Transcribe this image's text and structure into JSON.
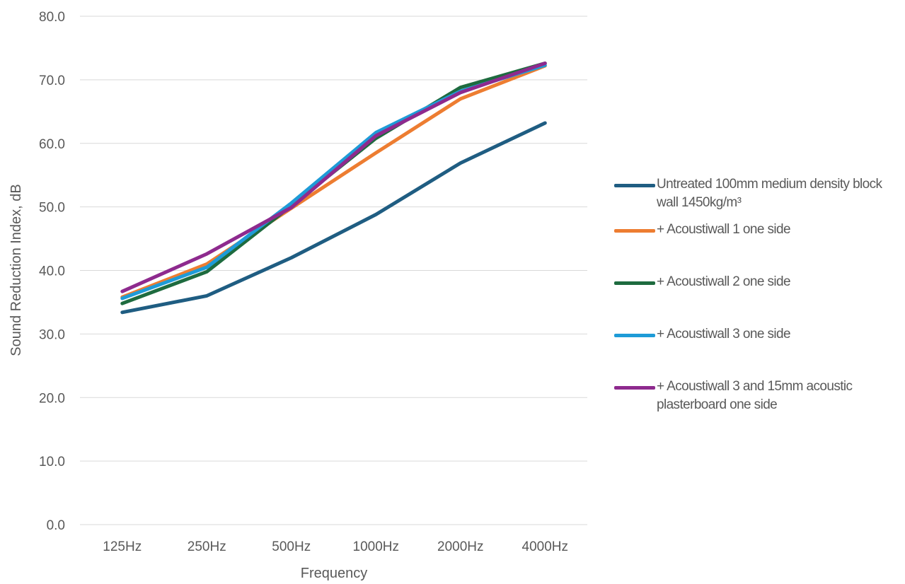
{
  "chart_data": {
    "type": "line",
    "categories": [
      "125Hz",
      "250Hz",
      "500Hz",
      "1000Hz",
      "2000Hz",
      "4000Hz"
    ],
    "xlabel": "Frequency",
    "ylabel": "Sound Reduction Index, dB",
    "ylim": [
      0,
      80
    ],
    "yticks": [
      "0.0",
      "10.0",
      "20.0",
      "30.0",
      "40.0",
      "50.0",
      "60.0",
      "70.0",
      "80.0"
    ],
    "grid": "horizontal",
    "legend_position": "right",
    "series": [
      {
        "name": "Untreated 100mm medium density block wall 1450kg/m³",
        "color": "#1f5d82",
        "values": [
          33.4,
          36.0,
          42.0,
          48.8,
          56.9,
          63.2
        ]
      },
      {
        "name": "+ Acoustiwall 1 one side",
        "color": "#ed7d31",
        "values": [
          35.8,
          41.0,
          49.8,
          58.5,
          67.0,
          72.2
        ]
      },
      {
        "name": "+ Acoustiwall 2 one side",
        "color": "#1e6b3f",
        "values": [
          34.8,
          39.8,
          50.2,
          60.8,
          68.8,
          72.6
        ]
      },
      {
        "name": "+ Acoustiwall 3 one side",
        "color": "#1e9bd7",
        "values": [
          35.6,
          40.5,
          50.6,
          61.7,
          68.2,
          72.3
        ]
      },
      {
        "name": "+ Acoustiwall 3 and 15mm acoustic plasterboard one side",
        "color": "#8e2a8e",
        "values": [
          36.7,
          42.6,
          49.9,
          61.2,
          68.0,
          72.6
        ]
      }
    ]
  }
}
